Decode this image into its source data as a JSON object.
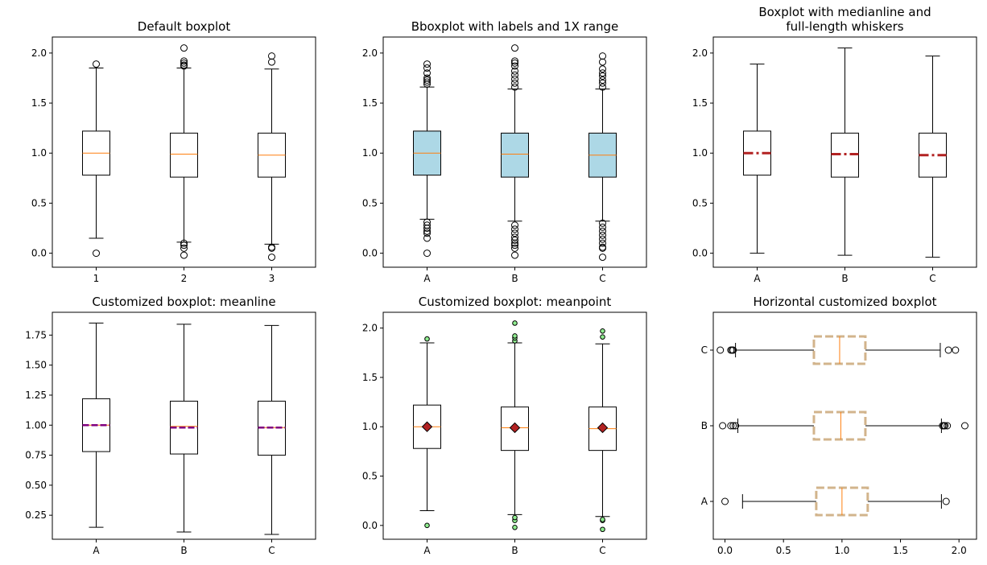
{
  "colors": {
    "box_fill_light": "#add8e6",
    "median_orange": "#ff7f0e",
    "median_red": "#b22222",
    "meanline_purple": "#800080",
    "mean_marker_fill": "#b22222",
    "flier_green": "#90ee90",
    "tan": "#d2b48c"
  },
  "chart_data": [
    {
      "type": "box",
      "title": "Default boxplot",
      "categories": [
        "1",
        "2",
        "3"
      ],
      "ylim": [
        -0.14,
        2.16
      ],
      "yticks": [
        0.0,
        0.5,
        1.0,
        1.5,
        2.0
      ],
      "ytick_labels": [
        "0.0",
        "0.5",
        "1.0",
        "1.5",
        "2.0"
      ],
      "boxes": [
        {
          "q1": 0.78,
          "median": 1.0,
          "q3": 1.22,
          "whislo": 0.15,
          "whishi": 1.85,
          "fliers": [
            0.0,
            1.89
          ]
        },
        {
          "q1": 0.76,
          "median": 0.99,
          "q3": 1.2,
          "whislo": 0.11,
          "whishi": 1.85,
          "fliers": [
            -0.02,
            0.05,
            0.08,
            0.1,
            1.87,
            1.88,
            1.9,
            1.92,
            2.05
          ]
        },
        {
          "q1": 0.76,
          "median": 0.98,
          "q3": 1.2,
          "whislo": 0.09,
          "whishi": 1.84,
          "fliers": [
            -0.04,
            0.05,
            0.06,
            1.91,
            1.97
          ]
        }
      ]
    },
    {
      "type": "box",
      "title": "Bboxplot with labels and 1X range",
      "categories": [
        "A",
        "B",
        "C"
      ],
      "ylim": [
        -0.14,
        2.16
      ],
      "yticks": [
        0.0,
        0.5,
        1.0,
        1.5,
        2.0
      ],
      "ytick_labels": [
        "0.0",
        "0.5",
        "1.0",
        "1.5",
        "2.0"
      ],
      "boxes": [
        {
          "q1": 0.78,
          "median": 1.0,
          "q3": 1.22,
          "whislo": 0.34,
          "whishi": 1.66,
          "fliers": [
            0.0,
            0.15,
            0.2,
            0.22,
            0.25,
            0.28,
            0.31,
            1.69,
            1.71,
            1.73,
            1.75,
            1.8,
            1.85,
            1.89
          ]
        },
        {
          "q1": 0.76,
          "median": 0.99,
          "q3": 1.2,
          "whislo": 0.32,
          "whishi": 1.64,
          "fliers": [
            -0.02,
            0.05,
            0.08,
            0.1,
            0.13,
            0.16,
            0.2,
            0.24,
            0.28,
            1.66,
            1.7,
            1.74,
            1.78,
            1.82,
            1.87,
            1.9,
            1.92,
            2.05
          ]
        },
        {
          "q1": 0.76,
          "median": 0.98,
          "q3": 1.2,
          "whislo": 0.32,
          "whishi": 1.64,
          "fliers": [
            -0.04,
            0.05,
            0.06,
            0.1,
            0.14,
            0.18,
            0.22,
            0.26,
            0.3,
            1.66,
            1.7,
            1.73,
            1.77,
            1.8,
            1.84,
            1.91,
            1.97
          ]
        }
      ]
    },
    {
      "type": "box",
      "title": "Boxplot with medianline and\nfull-length whiskers",
      "categories": [
        "A",
        "B",
        "C"
      ],
      "ylim": [
        -0.14,
        2.16
      ],
      "yticks": [
        0.0,
        0.5,
        1.0,
        1.5,
        2.0
      ],
      "ytick_labels": [
        "0.0",
        "0.5",
        "1.0",
        "1.5",
        "2.0"
      ],
      "boxes": [
        {
          "q1": 0.78,
          "median": 1.0,
          "q3": 1.22,
          "whislo": 0.0,
          "whishi": 1.89,
          "fliers": []
        },
        {
          "q1": 0.76,
          "median": 0.99,
          "q3": 1.2,
          "whislo": -0.02,
          "whishi": 2.05,
          "fliers": []
        },
        {
          "q1": 0.76,
          "median": 0.98,
          "q3": 1.2,
          "whislo": -0.04,
          "whishi": 1.97,
          "fliers": []
        }
      ]
    },
    {
      "type": "box",
      "title": "Customized boxplot: meanline",
      "categories": [
        "A",
        "B",
        "C"
      ],
      "ylim": [
        0.05,
        1.94
      ],
      "yticks": [
        0.25,
        0.5,
        0.75,
        1.0,
        1.25,
        1.5,
        1.75
      ],
      "ytick_labels": [
        "0.25",
        "0.50",
        "0.75",
        "1.00",
        "1.25",
        "1.50",
        "1.75"
      ],
      "boxes": [
        {
          "q1": 0.78,
          "median": 1.0,
          "q3": 1.22,
          "whislo": 0.15,
          "whishi": 1.85,
          "mean": 1.0,
          "fliers": []
        },
        {
          "q1": 0.76,
          "median": 0.99,
          "q3": 1.2,
          "whislo": 0.11,
          "whishi": 1.84,
          "mean": 0.98,
          "fliers": []
        },
        {
          "q1": 0.75,
          "median": 0.98,
          "q3": 1.2,
          "whislo": 0.09,
          "whishi": 1.83,
          "mean": 0.98,
          "fliers": []
        }
      ]
    },
    {
      "type": "box",
      "title": "Customized boxplot: meanpoint",
      "categories": [
        "A",
        "B",
        "C"
      ],
      "ylim": [
        -0.14,
        2.16
      ],
      "yticks": [
        0.0,
        0.5,
        1.0,
        1.5,
        2.0
      ],
      "ytick_labels": [
        "0.0",
        "0.5",
        "1.0",
        "1.5",
        "2.0"
      ],
      "boxes": [
        {
          "q1": 0.78,
          "median": 1.0,
          "q3": 1.22,
          "whislo": 0.15,
          "whishi": 1.85,
          "mean": 1.0,
          "fliers": [
            0.0,
            1.89
          ]
        },
        {
          "q1": 0.76,
          "median": 0.99,
          "q3": 1.2,
          "whislo": 0.11,
          "whishi": 1.85,
          "mean": 0.99,
          "fliers": [
            -0.02,
            0.05,
            0.08,
            1.87,
            1.9,
            1.92,
            2.05
          ]
        },
        {
          "q1": 0.76,
          "median": 0.98,
          "q3": 1.2,
          "whislo": 0.09,
          "whishi": 1.84,
          "mean": 0.99,
          "fliers": [
            -0.04,
            0.05,
            0.06,
            1.91,
            1.97
          ]
        }
      ]
    },
    {
      "type": "box",
      "orientation": "horizontal",
      "title": "Horizontal customized boxplot",
      "categories": [
        "A",
        "B",
        "C"
      ],
      "xlim": [
        -0.1,
        2.15
      ],
      "xticks": [
        0.0,
        0.5,
        1.0,
        1.5,
        2.0
      ],
      "xtick_labels": [
        "0.0",
        "0.5",
        "1.0",
        "1.5",
        "2.0"
      ],
      "boxes": [
        {
          "q1": 0.78,
          "median": 1.0,
          "q3": 1.22,
          "whislo": 0.15,
          "whishi": 1.85,
          "fliers": [
            0.0,
            1.89
          ]
        },
        {
          "q1": 0.76,
          "median": 0.99,
          "q3": 1.2,
          "whislo": 0.11,
          "whishi": 1.85,
          "fliers": [
            -0.02,
            0.05,
            0.07,
            0.09,
            1.86,
            1.87,
            1.88,
            1.9,
            2.05
          ]
        },
        {
          "q1": 0.76,
          "median": 0.98,
          "q3": 1.2,
          "whislo": 0.09,
          "whishi": 1.84,
          "fliers": [
            -0.04,
            0.05,
            0.06,
            0.07,
            1.91,
            1.97
          ]
        }
      ]
    }
  ]
}
